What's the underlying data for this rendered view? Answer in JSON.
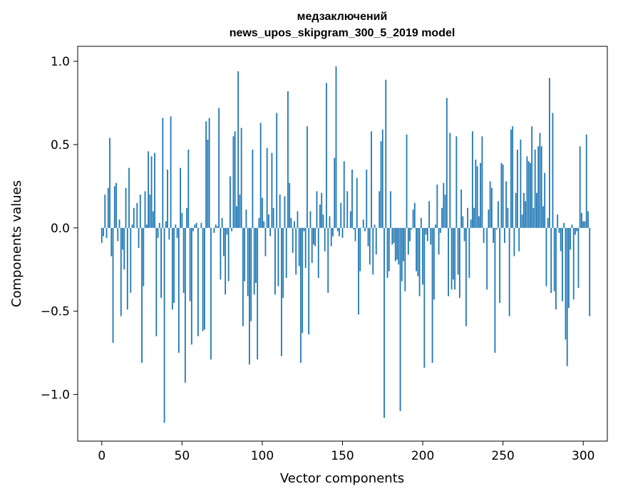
{
  "chart_data": {
    "type": "bar",
    "title": "медзаключений",
    "subtitle": "news_upos_skipgram_300_5_2019 model",
    "xlabel": "Vector components",
    "ylabel": "Components values",
    "xlim": [
      -15,
      315
    ],
    "ylim": [
      -1.28,
      1.09
    ],
    "x_ticks": [
      0,
      50,
      100,
      150,
      200,
      250,
      300
    ],
    "x_tick_labels": [
      "0",
      "50",
      "100",
      "150",
      "200",
      "250",
      "300"
    ],
    "y_ticks": [
      -1.0,
      -0.5,
      0.0,
      0.5,
      1.0
    ],
    "y_tick_labels": [
      "−1.0",
      "−0.5",
      "0.0",
      "0.5",
      "1.0"
    ],
    "bar_color": "#1f77b4",
    "grid": false,
    "values": [
      -0.09,
      -0.05,
      0.2,
      -0.06,
      0.24,
      0.54,
      -0.17,
      -0.69,
      0.25,
      0.27,
      -0.08,
      0.05,
      -0.53,
      -0.13,
      -0.25,
      0.24,
      -0.49,
      0.36,
      -0.39,
      0.02,
      0.12,
      0.0,
      0.15,
      -0.12,
      0.2,
      -0.81,
      -0.35,
      0.22,
      0.02,
      0.46,
      0.2,
      0.43,
      0.1,
      0.45,
      -0.65,
      -0.06,
      0.03,
      -0.42,
      0.66,
      -1.17,
      0.04,
      0.35,
      -0.07,
      0.67,
      -0.49,
      -0.45,
      0.02,
      -0.06,
      -0.75,
      0.36,
      0.09,
      -0.39,
      -0.93,
      0.12,
      0.47,
      -0.44,
      -0.7,
      -0.02,
      0.02,
      0.03,
      -0.65,
      0.0,
      0.03,
      -0.62,
      -0.61,
      0.64,
      0.53,
      0.66,
      -0.79,
      0.0,
      -0.03,
      0.02,
      0.01,
      0.72,
      -0.31,
      0.06,
      -0.17,
      -0.4,
      -0.04,
      -0.32,
      0.31,
      -0.02,
      0.55,
      0.58,
      0.13,
      0.94,
      0.2,
      0.6,
      -0.59,
      -0.32,
      0.11,
      -0.41,
      -0.82,
      -0.56,
      0.47,
      -0.4,
      -0.33,
      -0.79,
      0.06,
      0.63,
      0.18,
      0.04,
      -0.17,
      0.48,
      0.08,
      -0.05,
      0.45,
      0.12,
      -0.4,
      0.69,
      -0.35,
      0.2,
      -0.77,
      -0.42,
      0.19,
      -0.3,
      0.82,
      0.27,
      0.06,
      -0.15,
      0.04,
      -0.28,
      0.1,
      -0.23,
      -0.81,
      -0.63,
      -0.02,
      -0.24,
      0.61,
      -0.64,
      0.1,
      -0.21,
      -0.1,
      -0.11,
      0.22,
      -0.3,
      0.14,
      0.21,
      0.08,
      -0.14,
      0.87,
      -0.39,
      0.07,
      -0.11,
      -0.05,
      0.42,
      0.97,
      -0.02,
      -0.05,
      0.15,
      -0.06,
      0.4,
      0.0,
      0.22,
      0.0,
      0.1,
      0.35,
      -0.01,
      -0.08,
      0.3,
      -0.52,
      -0.26,
      0.0,
      0.05,
      -0.02,
      0.35,
      -0.11,
      -0.22,
      0.58,
      -0.28,
      0.02,
      -0.16,
      0.0,
      0.22,
      0.52,
      0.59,
      -1.14,
      0.89,
      -0.3,
      -0.26,
      0.22,
      -0.1,
      -0.09,
      -0.2,
      -0.19,
      -0.22,
      -1.1,
      -0.32,
      -0.2,
      -0.38,
      0.56,
      -0.16,
      -0.08,
      -0.01,
      0.11,
      0.15,
      -0.26,
      -0.29,
      -0.41,
      0.06,
      -0.34,
      -0.84,
      -0.04,
      -0.08,
      0.16,
      -0.1,
      -0.81,
      -0.43,
      0.02,
      0.26,
      -0.16,
      -0.03,
      0.12,
      0.27,
      0.2,
      0.78,
      -0.41,
      0.57,
      -0.37,
      -0.31,
      -0.37,
      0.55,
      -0.28,
      -0.42,
      0.23,
      0.07,
      -0.08,
      -0.59,
      0.12,
      -0.3,
      0.05,
      0.58,
      0.12,
      0.41,
      0.37,
      0.07,
      0.39,
      0.55,
      -0.09,
      0.0,
      -0.37,
      0.11,
      0.28,
      0.24,
      -0.09,
      -0.75,
      -0.01,
      0.16,
      -0.45,
      0.39,
      0.38,
      -0.09,
      0.28,
      0.12,
      -0.53,
      0.59,
      0.61,
      -0.17,
      0.21,
      0.47,
      -0.14,
      0.53,
      0.08,
      0.21,
      0.16,
      0.43,
      0.4,
      0.39,
      0.61,
      0.12,
      0.47,
      0.21,
      0.49,
      0.57,
      0.49,
      0.13,
      0.33,
      -0.35,
      0.06,
      0.9,
      -0.39,
      0.69,
      -0.38,
      -0.49,
      0.08,
      -0.03,
      -0.14,
      -0.44,
      0.03,
      -0.67,
      -0.83,
      -0.48,
      -0.13,
      0.02,
      -0.43,
      -0.04,
      -0.02,
      -0.36,
      0.49,
      0.09,
      0.04,
      0.04,
      0.56,
      0.1,
      -0.53
    ]
  }
}
